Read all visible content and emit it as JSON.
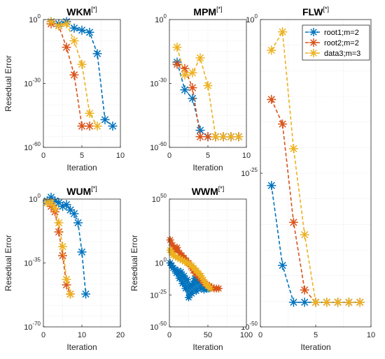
{
  "colors": {
    "root1": "#0072BD",
    "root2": "#D95319",
    "data3": "#EDB120"
  },
  "chart_data": [
    {
      "type": "line",
      "scale_y": "log",
      "grid": true,
      "title": "WKM",
      "title_sup": "[*]",
      "xlabel": "Iteration",
      "ylabel": "Resedual Error",
      "xlim": [
        0,
        10
      ],
      "ylim_exp": [
        -60,
        0
      ],
      "xticks": [
        "0",
        "5",
        "10"
      ],
      "yticks": [
        {
          "base": "10",
          "exp": "0",
          "v": 0
        },
        {
          "base": "10",
          "exp": "-30",
          "v": -30
        },
        {
          "base": "10",
          "exp": "-60",
          "v": -60
        }
      ],
      "series": [
        {
          "key": "root1",
          "x": [
            1,
            2,
            3,
            4,
            5,
            6,
            7,
            8,
            9
          ],
          "log10": [
            -1,
            -2,
            -1,
            -4,
            -5,
            -6,
            -16,
            -47,
            -50
          ]
        },
        {
          "key": "root2",
          "x": [
            1,
            2,
            3,
            4,
            5,
            6
          ],
          "log10": [
            -2,
            -3,
            -13,
            -26,
            -50,
            -50
          ]
        },
        {
          "key": "data3",
          "x": [
            1,
            2,
            3,
            4,
            5,
            6,
            7
          ],
          "log10": [
            -1,
            -3,
            -2,
            -10,
            -21,
            -44,
            -50
          ]
        }
      ]
    },
    {
      "type": "line",
      "scale_y": "log",
      "grid": true,
      "title": "MPM",
      "title_sup": "[*]",
      "xlabel": "Iteration",
      "ylabel": "",
      "xlim": [
        0,
        10
      ],
      "ylim_exp": [
        -60,
        0
      ],
      "xticks": [
        "0",
        "5",
        "10"
      ],
      "yticks": [
        {
          "base": "10",
          "exp": "0",
          "v": 0
        },
        {
          "base": "10",
          "exp": "-30",
          "v": -30
        },
        {
          "base": "10",
          "exp": "-60",
          "v": -60
        }
      ],
      "series": [
        {
          "key": "root1",
          "x": [
            1,
            2,
            3,
            4,
            5,
            6,
            7,
            8,
            9
          ],
          "log10": [
            -20,
            -33,
            -37,
            -52,
            -55,
            -55,
            -55,
            -55,
            -55
          ]
        },
        {
          "key": "root2",
          "x": [
            1,
            2,
            3,
            4,
            5,
            6,
            7,
            8,
            9
          ],
          "log10": [
            -21,
            -23,
            -32,
            -55,
            -55,
            -55,
            -55,
            -55,
            -55
          ]
        },
        {
          "key": "data3",
          "x": [
            1,
            2,
            3,
            4,
            5,
            6,
            7,
            8,
            9
          ],
          "log10": [
            -13,
            -26,
            -25,
            -18,
            -31,
            -55,
            -55,
            -55,
            -55
          ]
        }
      ]
    },
    {
      "type": "line",
      "scale_y": "log",
      "grid": true,
      "title": "FLW",
      "title_sup": "[*]",
      "xlabel": "Iteration",
      "ylabel": "",
      "xlim": [
        0,
        10
      ],
      "ylim_exp": [
        -50,
        0
      ],
      "xticks": [
        "0",
        "5",
        "10"
      ],
      "yticks": [
        {
          "base": "10",
          "exp": "0",
          "v": 0
        },
        {
          "base": "10",
          "exp": "-25",
          "v": -25
        },
        {
          "base": "10",
          "exp": "-50",
          "v": -50
        }
      ],
      "legend_position": "top-right",
      "legend": [
        {
          "key": "root1",
          "label": "root1;m=2"
        },
        {
          "key": "root2",
          "label": "root2;m=2"
        },
        {
          "key": "data3",
          "label": "data3;m=3"
        }
      ],
      "series": [
        {
          "key": "root1",
          "x": [
            1,
            2,
            3,
            4,
            5,
            6,
            7,
            8,
            9
          ],
          "log10": [
            -27,
            -40,
            -46,
            -46,
            -46,
            -46,
            -46,
            -46,
            -46
          ]
        },
        {
          "key": "root2",
          "x": [
            1,
            2,
            3,
            4,
            5,
            6,
            7,
            8,
            9
          ],
          "log10": [
            -13,
            -17,
            -33,
            -44,
            -46,
            -46,
            -46,
            -46,
            -46
          ]
        },
        {
          "key": "data3",
          "x": [
            1,
            2,
            3,
            4,
            5,
            6,
            7,
            8,
            9
          ],
          "log10": [
            -5,
            -2,
            -21,
            -35,
            -46,
            -46,
            -46,
            -46,
            -46
          ]
        }
      ]
    },
    {
      "type": "line",
      "scale_y": "log",
      "grid": true,
      "title": "WUM",
      "title_sup": "[*]",
      "xlabel": "Iteration",
      "ylabel": "Resedual Error",
      "xlim": [
        0,
        20
      ],
      "ylim_exp": [
        -70,
        0
      ],
      "xticks": [
        "0",
        "10",
        "20"
      ],
      "yticks": [
        {
          "base": "10",
          "exp": "0",
          "v": 0
        },
        {
          "base": "10",
          "exp": "-35",
          "v": -35
        },
        {
          "base": "10",
          "exp": "-70",
          "v": -70
        }
      ],
      "series": [
        {
          "key": "root1",
          "x": [
            1,
            2,
            3,
            4,
            5,
            6,
            7,
            8,
            9,
            10,
            11
          ],
          "log10": [
            -1,
            1,
            -1,
            -2,
            -4,
            -3,
            -6,
            -8,
            -13,
            -29,
            -52
          ]
        },
        {
          "key": "root2",
          "x": [
            1,
            2,
            3,
            4,
            5,
            6,
            7
          ],
          "log10": [
            -2,
            -4,
            -7,
            -18,
            -31,
            -47,
            -52
          ]
        },
        {
          "key": "data3",
          "x": [
            1,
            2,
            3,
            4,
            5,
            6,
            7
          ],
          "log10": [
            -2,
            -2,
            -5,
            -13,
            -26,
            -44,
            -52
          ]
        }
      ]
    },
    {
      "type": "scatter",
      "scale_y": "log",
      "grid": true,
      "title": "WWM",
      "title_sup": "[*]",
      "xlabel": "Iteration",
      "ylabel": "Resedual Error",
      "xlim": [
        0,
        100
      ],
      "ylim_exp": [
        -50,
        50
      ],
      "xticks": [
        "0",
        "50",
        "100"
      ],
      "yticks": [
        {
          "base": "10",
          "exp": "50",
          "v": 50
        },
        {
          "base": "10",
          "exp": "0",
          "v": 0
        },
        {
          "base": "10",
          "exp": "-25",
          "v": -25
        },
        {
          "base": "10",
          "exp": "-50",
          "v": -50
        }
      ],
      "series": [
        {
          "key": "root1",
          "x": [
            1,
            3,
            5,
            7,
            9,
            11,
            13,
            15,
            17,
            19,
            21,
            23,
            25,
            27,
            29,
            31,
            33,
            35,
            37,
            39,
            41,
            43,
            45,
            47,
            49,
            51
          ],
          "log10": [
            0,
            -2,
            -4,
            -5,
            -8,
            -6,
            -12,
            -7,
            -16,
            -10,
            -20,
            -13,
            -27,
            -18,
            -24,
            -16,
            -12,
            -22,
            -14,
            -10,
            -20,
            -16,
            -21,
            -19,
            -20,
            -20
          ]
        },
        {
          "key": "root2",
          "x": [
            1,
            4,
            7,
            10,
            13,
            16,
            19,
            22,
            25,
            28,
            31,
            34,
            37,
            40,
            43,
            46,
            49,
            52,
            55,
            58,
            61,
            64
          ],
          "log10": [
            18,
            14,
            10,
            12,
            8,
            6,
            4,
            2,
            0,
            -3,
            -6,
            -8,
            -10,
            -12,
            -14,
            -16,
            -17,
            -18,
            -19,
            -20,
            -20,
            -20
          ]
        },
        {
          "key": "data3",
          "x": [
            1,
            3,
            5,
            8,
            11,
            14,
            17,
            20,
            23,
            26,
            29,
            32,
            35,
            38,
            41,
            44,
            47,
            50,
            53
          ],
          "log10": [
            10,
            8,
            6,
            5,
            4,
            3,
            2,
            1,
            0,
            -1,
            -2,
            -4,
            -6,
            -8,
            -10,
            -13,
            -16,
            -18,
            -20
          ]
        }
      ]
    }
  ]
}
